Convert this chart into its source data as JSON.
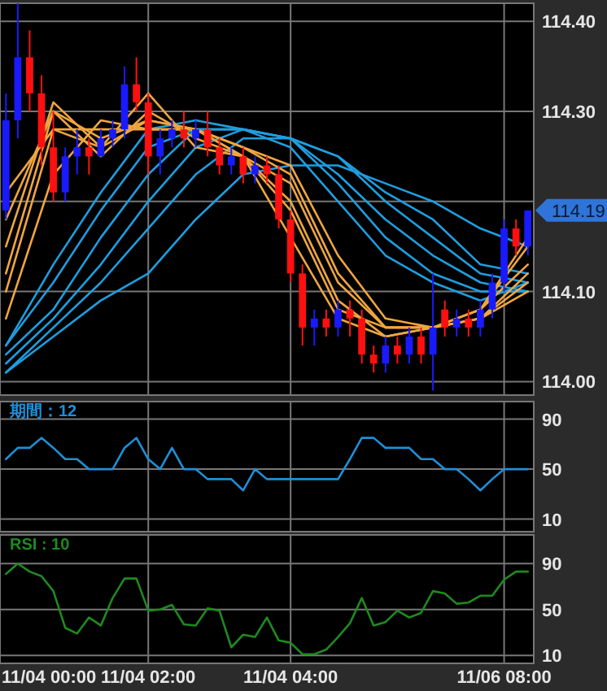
{
  "chart_data": [
    {
      "type": "candlestick",
      "ohlc": [
        [
          114.19,
          114.32,
          114.18,
          114.29
        ],
        [
          114.29,
          114.42,
          114.27,
          114.36
        ],
        [
          114.36,
          114.39,
          114.3,
          114.32
        ],
        [
          114.32,
          114.34,
          114.24,
          114.26
        ],
        [
          114.26,
          114.3,
          114.2,
          114.21
        ],
        [
          114.21,
          114.26,
          114.2,
          114.25
        ],
        [
          114.25,
          114.28,
          114.23,
          114.26
        ],
        [
          114.26,
          114.27,
          114.23,
          114.25
        ],
        [
          114.25,
          114.28,
          114.25,
          114.27
        ],
        [
          114.27,
          114.29,
          114.26,
          114.28
        ],
        [
          114.28,
          114.35,
          114.27,
          114.33
        ],
        [
          114.33,
          114.36,
          114.3,
          114.31
        ],
        [
          114.31,
          114.32,
          114.23,
          114.25
        ],
        [
          114.25,
          114.28,
          114.23,
          114.27
        ],
        [
          114.27,
          114.29,
          114.26,
          114.28
        ],
        [
          114.28,
          114.3,
          114.26,
          114.27
        ],
        [
          114.27,
          114.29,
          114.26,
          114.28
        ],
        [
          114.28,
          114.3,
          114.25,
          114.26
        ],
        [
          114.26,
          114.27,
          114.23,
          114.24
        ],
        [
          114.24,
          114.26,
          114.23,
          114.25
        ],
        [
          114.25,
          114.26,
          114.22,
          114.23
        ],
        [
          114.23,
          114.25,
          114.22,
          114.24
        ],
        [
          114.24,
          114.25,
          114.22,
          114.23
        ],
        [
          114.23,
          114.24,
          114.17,
          114.18
        ],
        [
          114.18,
          114.19,
          114.11,
          114.12
        ],
        [
          114.12,
          114.13,
          114.04,
          114.06
        ],
        [
          114.06,
          114.08,
          114.04,
          114.07
        ],
        [
          114.07,
          114.08,
          114.05,
          114.06
        ],
        [
          114.06,
          114.09,
          114.05,
          114.08
        ],
        [
          114.08,
          114.09,
          114.05,
          114.07
        ],
        [
          114.07,
          114.08,
          114.02,
          114.03
        ],
        [
          114.03,
          114.04,
          114.01,
          114.02
        ],
        [
          114.02,
          114.05,
          114.01,
          114.04
        ],
        [
          114.04,
          114.05,
          114.02,
          114.03
        ],
        [
          114.03,
          114.06,
          114.02,
          114.05
        ],
        [
          114.05,
          114.06,
          114.02,
          114.03
        ],
        [
          114.03,
          114.12,
          113.99,
          114.06
        ],
        [
          114.08,
          114.09,
          114.05,
          114.06
        ],
        [
          114.06,
          114.08,
          114.05,
          114.07
        ],
        [
          114.07,
          114.08,
          114.05,
          114.06
        ],
        [
          114.06,
          114.09,
          114.05,
          114.08
        ],
        [
          114.08,
          114.12,
          114.07,
          114.11
        ],
        [
          114.11,
          114.18,
          114.1,
          114.17
        ],
        [
          114.17,
          114.18,
          114.14,
          114.15
        ],
        [
          114.15,
          114.19,
          114.14,
          114.19
        ]
      ],
      "colors": [
        "#1a1aff",
        "#1a1aff",
        "#ff1010",
        "#ff1010",
        "#ff1010",
        "#1a1aff",
        "#1a1aff",
        "#ff1010",
        "#1a1aff",
        "#1a1aff",
        "#1a1aff",
        "#ff1010",
        "#ff1010",
        "#1a1aff",
        "#1a1aff",
        "#ff1010",
        "#1a1aff",
        "#ff1010",
        "#ff1010",
        "#1a1aff",
        "#ff1010",
        "#1a1aff",
        "#ff1010",
        "#ff1010",
        "#ff1010",
        "#ff1010",
        "#1a1aff",
        "#ff1010",
        "#1a1aff",
        "#ff1010",
        "#ff1010",
        "#ff1010",
        "#1a1aff",
        "#ff1010",
        "#1a1aff",
        "#ff1010",
        "#1a1aff",
        "#ff1010",
        "#1a1aff",
        "#ff1010",
        "#1a1aff",
        "#1a1aff",
        "#1a1aff",
        "#ff1010",
        "#1a1aff"
      ],
      "series": [
        {
          "type": "line",
          "color": "#1e9ee0",
          "values": [
            114.04,
            null,
            null,
            null,
            114.13,
            null,
            null,
            null,
            114.21,
            null,
            null,
            null,
            114.28,
            null,
            null,
            null,
            114.29,
            null,
            null,
            null,
            114.28,
            null,
            null,
            null,
            114.26,
            null,
            null,
            null,
            114.2,
            null,
            null,
            null,
            114.14,
            null,
            null,
            null,
            114.11,
            null,
            null,
            null,
            114.09,
            null,
            null,
            null,
            114.11
          ]
        },
        {
          "type": "line",
          "color": "#1e9ee0",
          "values": [
            114.04,
            null,
            null,
            null,
            114.11,
            null,
            null,
            null,
            114.19,
            null,
            null,
            null,
            114.26,
            null,
            null,
            null,
            114.28,
            null,
            null,
            null,
            114.28,
            null,
            null,
            null,
            114.27,
            null,
            null,
            null,
            114.22,
            null,
            null,
            null,
            114.16,
            null,
            null,
            null,
            114.12,
            null,
            null,
            null,
            114.1,
            null,
            null,
            null,
            114.1
          ]
        },
        {
          "type": "line",
          "color": "#1e9ee0",
          "values": [
            114.03,
            null,
            null,
            null,
            114.08,
            null,
            null,
            null,
            114.16,
            null,
            null,
            null,
            114.23,
            null,
            null,
            null,
            114.28,
            null,
            null,
            null,
            114.28,
            null,
            null,
            null,
            114.27,
            null,
            null,
            null,
            114.23,
            null,
            null,
            null,
            114.18,
            null,
            null,
            null,
            114.14,
            null,
            null,
            null,
            114.11,
            null,
            null,
            null,
            114.1
          ]
        },
        {
          "type": "line",
          "color": "#1e9ee0",
          "values": [
            114.02,
            null,
            null,
            null,
            114.07,
            null,
            null,
            null,
            114.13,
            null,
            null,
            null,
            114.2,
            null,
            null,
            null,
            114.26,
            null,
            null,
            null,
            114.28,
            null,
            null,
            null,
            114.27,
            null,
            null,
            null,
            114.25,
            null,
            null,
            null,
            114.2,
            null,
            null,
            null,
            114.16,
            null,
            null,
            null,
            114.12,
            null,
            null,
            null,
            114.11
          ]
        },
        {
          "type": "line",
          "color": "#1e9ee0",
          "values": [
            114.01,
            null,
            null,
            null,
            114.06,
            null,
            null,
            null,
            114.11,
            null,
            null,
            null,
            114.17,
            null,
            null,
            null,
            114.23,
            null,
            null,
            null,
            114.27,
            null,
            null,
            null,
            114.27,
            null,
            null,
            null,
            114.25,
            null,
            null,
            null,
            114.21,
            null,
            null,
            null,
            114.18,
            null,
            null,
            null,
            114.13,
            null,
            null,
            null,
            114.12
          ]
        },
        {
          "type": "line",
          "color": "#1e9ee0",
          "values": [
            114.01,
            null,
            null,
            null,
            114.05,
            null,
            null,
            null,
            114.09,
            null,
            null,
            null,
            114.12,
            null,
            null,
            null,
            114.18,
            null,
            null,
            null,
            114.23,
            null,
            null,
            null,
            114.24,
            null,
            null,
            null,
            114.24,
            null,
            null,
            null,
            114.22,
            null,
            null,
            null,
            114.2,
            null,
            null,
            null,
            114.17,
            null,
            null,
            null,
            114.15
          ]
        },
        {
          "type": "line",
          "color": "#f0a640",
          "values": [
            114.21,
            null,
            null,
            null,
            114.28,
            null,
            null,
            null,
            114.26,
            null,
            null,
            null,
            114.32,
            null,
            null,
            null,
            114.26,
            null,
            null,
            null,
            114.25,
            null,
            null,
            null,
            114.16,
            null,
            null,
            null,
            114.07,
            null,
            null,
            null,
            114.05,
            null,
            null,
            null,
            114.06,
            null,
            null,
            null,
            114.08,
            null,
            null,
            null,
            114.16
          ]
        },
        {
          "type": "line",
          "color": "#f0a640",
          "values": [
            114.18,
            null,
            null,
            null,
            114.3,
            null,
            null,
            null,
            114.25,
            null,
            null,
            null,
            114.3,
            null,
            null,
            null,
            114.27,
            null,
            null,
            null,
            114.25,
            null,
            null,
            null,
            114.19,
            null,
            null,
            null,
            114.08,
            null,
            null,
            null,
            114.06,
            null,
            null,
            null,
            114.06,
            null,
            null,
            null,
            114.08,
            null,
            null,
            null,
            114.15
          ]
        },
        {
          "type": "line",
          "color": "#f0a640",
          "values": [
            114.15,
            null,
            null,
            null,
            114.31,
            null,
            null,
            null,
            114.26,
            null,
            null,
            null,
            114.29,
            null,
            null,
            null,
            114.28,
            null,
            null,
            null,
            114.25,
            null,
            null,
            null,
            114.2,
            null,
            null,
            null,
            114.09,
            null,
            null,
            null,
            114.05,
            null,
            null,
            null,
            114.06,
            null,
            null,
            null,
            114.08,
            null,
            null,
            null,
            114.13
          ]
        },
        {
          "type": "line",
          "color": "#f0a640",
          "values": [
            114.12,
            null,
            null,
            null,
            114.3,
            null,
            null,
            null,
            114.27,
            null,
            null,
            null,
            114.29,
            null,
            null,
            null,
            114.28,
            null,
            null,
            null,
            114.25,
            null,
            null,
            null,
            114.22,
            null,
            null,
            null,
            114.11,
            null,
            null,
            null,
            114.06,
            null,
            null,
            null,
            114.06,
            null,
            null,
            null,
            114.07,
            null,
            null,
            null,
            114.12
          ]
        },
        {
          "type": "line",
          "color": "#f0a640",
          "values": [
            114.1,
            null,
            null,
            null,
            114.28,
            null,
            null,
            null,
            114.28,
            null,
            null,
            null,
            114.28,
            null,
            null,
            null,
            114.28,
            null,
            null,
            null,
            114.26,
            null,
            null,
            null,
            114.23,
            null,
            null,
            null,
            114.12,
            null,
            null,
            null,
            114.06,
            null,
            null,
            null,
            114.06,
            null,
            null,
            null,
            114.07,
            null,
            null,
            null,
            114.11
          ]
        },
        {
          "type": "line",
          "color": "#f0a640",
          "values": [
            114.07,
            null,
            null,
            null,
            114.23,
            null,
            null,
            null,
            114.29,
            null,
            null,
            null,
            114.28,
            null,
            null,
            null,
            114.28,
            null,
            null,
            null,
            114.26,
            null,
            null,
            null,
            114.24,
            null,
            null,
            null,
            114.14,
            null,
            null,
            null,
            114.07,
            null,
            null,
            null,
            114.06,
            null,
            null,
            null,
            114.07,
            null,
            null,
            null,
            114.1
          ]
        }
      ],
      "ylim": [
        113.985,
        114.42
      ],
      "yticks": [
        {
          "value": 114.0,
          "label": "114.00"
        },
        {
          "value": 114.1,
          "label": "114.10"
        },
        {
          "value": 114.2,
          "label": null
        },
        {
          "value": 114.3,
          "label": "114.30"
        },
        {
          "value": 114.4,
          "label": "114.40"
        }
      ],
      "annotations": [
        "114.19"
      ],
      "grid": true,
      "tick_labels": "y"
    },
    {
      "type": "line",
      "title": "期間：12",
      "color": "#1e90d8",
      "values": [
        58,
        67,
        67,
        75,
        67,
        58,
        58,
        50,
        50,
        50,
        67,
        75,
        58,
        50,
        67,
        50,
        50,
        42,
        42,
        42,
        33,
        50,
        42,
        42,
        42,
        42,
        42,
        42,
        42,
        58,
        75,
        75,
        67,
        67,
        67,
        58,
        58,
        50,
        50,
        42,
        33,
        42,
        50,
        50,
        50
      ],
      "ylim": [
        0,
        104
      ],
      "yticks": [
        10,
        50,
        90
      ],
      "grid": true,
      "tick_labels": "y"
    },
    {
      "type": "line",
      "title": "RSI : 10",
      "color": "#1f8a1f",
      "categories": [
        null,
        null,
        null,
        null,
        null,
        null,
        null,
        null,
        null,
        null,
        null,
        null,
        "11/04 02:00",
        null,
        null,
        null,
        null,
        null,
        null,
        null,
        null,
        null,
        null,
        null,
        "11/04 04:00",
        null,
        null,
        null,
        null,
        null,
        null,
        null,
        null,
        null,
        null,
        null,
        null,
        null,
        null,
        null,
        null,
        null,
        "11/06 08:00",
        null,
        null
      ],
      "values": [
        81,
        90,
        83,
        79,
        66,
        34,
        29,
        43,
        36,
        60,
        77,
        77,
        49,
        50,
        54,
        37,
        36,
        51,
        49,
        17,
        28,
        26,
        43,
        23,
        21,
        11,
        11,
        15,
        26,
        38,
        60,
        36,
        39,
        49,
        43,
        47,
        66,
        64,
        55,
        56,
        62,
        62,
        76,
        83,
        83
      ],
      "annotations": [
        "11/04 00:00"
      ],
      "ylim": [
        3,
        115
      ],
      "yticks": [
        10,
        50,
        90
      ],
      "grid": true
    }
  ]
}
